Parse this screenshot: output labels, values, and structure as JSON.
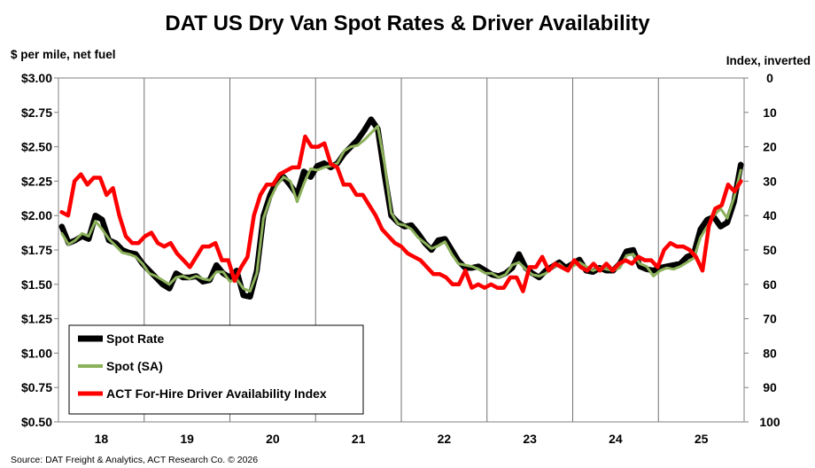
{
  "chart_data": {
    "type": "line",
    "title": "DAT US Dry Van Spot Rates & Driver Availability",
    "ylabel_left": "$ per mile, net fuel",
    "ylabel_right": "Index, inverted",
    "source": "Source: DAT Freight & Analytics, ACT Research Co. © 2026",
    "x_labels": [
      "18",
      "19",
      "20",
      "21",
      "22",
      "23",
      "24",
      "25"
    ],
    "x_range": [
      2018,
      2026
    ],
    "ylim_left": [
      0.5,
      3.0
    ],
    "ylim_right": [
      100,
      0
    ],
    "left_ticks": [
      "$3.00",
      "$2.75",
      "$2.50",
      "$2.25",
      "$2.00",
      "$1.75",
      "$1.50",
      "$1.25",
      "$1.00",
      "$0.75",
      "$0.50"
    ],
    "right_ticks": [
      "0",
      "10",
      "20",
      "30",
      "40",
      "50",
      "60",
      "70",
      "80",
      "90",
      "100"
    ],
    "grid": "vertical year lines",
    "legend_position": "bottom-left",
    "series": [
      {
        "name": "Spot Rate",
        "color": "#000000",
        "axis": "left",
        "values": [
          1.92,
          1.8,
          1.82,
          1.85,
          1.83,
          2.0,
          1.97,
          1.82,
          1.8,
          1.75,
          1.73,
          1.72,
          1.65,
          1.6,
          1.55,
          1.5,
          1.47,
          1.58,
          1.55,
          1.55,
          1.56,
          1.52,
          1.53,
          1.64,
          1.58,
          1.55,
          1.6,
          1.42,
          1.41,
          1.6,
          2.0,
          2.15,
          2.25,
          2.28,
          2.22,
          2.15,
          2.32,
          2.28,
          2.36,
          2.38,
          2.35,
          2.38,
          2.45,
          2.5,
          2.55,
          2.62,
          2.7,
          2.63,
          2.3,
          2.0,
          1.95,
          1.92,
          1.93,
          1.87,
          1.8,
          1.75,
          1.82,
          1.83,
          1.75,
          1.67,
          1.62,
          1.62,
          1.63,
          1.6,
          1.57,
          1.56,
          1.58,
          1.62,
          1.72,
          1.62,
          1.58,
          1.55,
          1.6,
          1.63,
          1.66,
          1.62,
          1.65,
          1.68,
          1.6,
          1.59,
          1.62,
          1.6,
          1.6,
          1.65,
          1.74,
          1.75,
          1.63,
          1.61,
          1.6,
          1.62,
          1.63,
          1.64,
          1.65,
          1.7,
          1.72,
          1.9,
          1.97,
          1.99,
          1.92,
          1.95,
          2.1,
          2.37
        ]
      },
      {
        "name": "Spot (SA)",
        "color": "#8cb15a",
        "axis": "left",
        "values": [
          1.87,
          1.79,
          1.82,
          1.87,
          1.85,
          1.96,
          1.9,
          1.83,
          1.78,
          1.73,
          1.72,
          1.7,
          1.65,
          1.58,
          1.56,
          1.53,
          1.5,
          1.55,
          1.56,
          1.54,
          1.56,
          1.54,
          1.53,
          1.59,
          1.59,
          1.52,
          1.54,
          1.47,
          1.45,
          1.58,
          1.98,
          2.12,
          2.22,
          2.28,
          2.25,
          2.1,
          2.23,
          2.34,
          2.33,
          2.35,
          2.36,
          2.38,
          2.47,
          2.5,
          2.51,
          2.55,
          2.6,
          2.65,
          2.38,
          2.02,
          1.94,
          1.93,
          1.9,
          1.84,
          1.8,
          1.76,
          1.78,
          1.81,
          1.72,
          1.65,
          1.64,
          1.63,
          1.61,
          1.58,
          1.58,
          1.55,
          1.57,
          1.64,
          1.66,
          1.61,
          1.57,
          1.56,
          1.58,
          1.62,
          1.65,
          1.61,
          1.63,
          1.66,
          1.63,
          1.6,
          1.62,
          1.61,
          1.6,
          1.62,
          1.71,
          1.72,
          1.65,
          1.63,
          1.56,
          1.6,
          1.62,
          1.61,
          1.63,
          1.66,
          1.69,
          1.84,
          1.92,
          2.0,
          2.05,
          1.98,
          2.13,
          2.33
        ]
      },
      {
        "name": "ACT For-Hire Driver Availability Index",
        "color": "#ff0000",
        "axis": "right",
        "values": [
          39,
          40,
          30,
          28,
          31,
          29,
          29,
          34,
          32,
          40,
          46,
          48,
          48,
          46,
          45,
          48,
          49,
          48,
          51,
          53,
          55,
          52,
          49,
          49,
          48,
          53,
          53,
          59,
          55,
          52,
          40,
          34,
          31,
          31,
          28,
          27,
          26,
          26,
          17,
          20,
          20,
          19,
          25,
          26,
          31,
          31,
          34,
          34,
          37,
          40,
          44,
          46,
          48,
          49,
          51,
          52,
          53,
          55,
          57,
          57,
          58,
          60,
          60,
          56,
          61,
          60,
          61,
          60,
          61,
          61,
          58,
          58,
          62,
          55,
          55,
          52,
          56,
          54,
          55,
          56,
          53,
          55,
          56,
          54,
          56,
          54,
          56,
          54,
          53,
          54,
          52,
          53,
          53,
          55,
          50,
          48,
          49,
          49,
          50,
          52,
          56,
          43,
          38,
          37,
          31,
          33,
          30
        ]
      }
    ],
    "annotations": []
  }
}
